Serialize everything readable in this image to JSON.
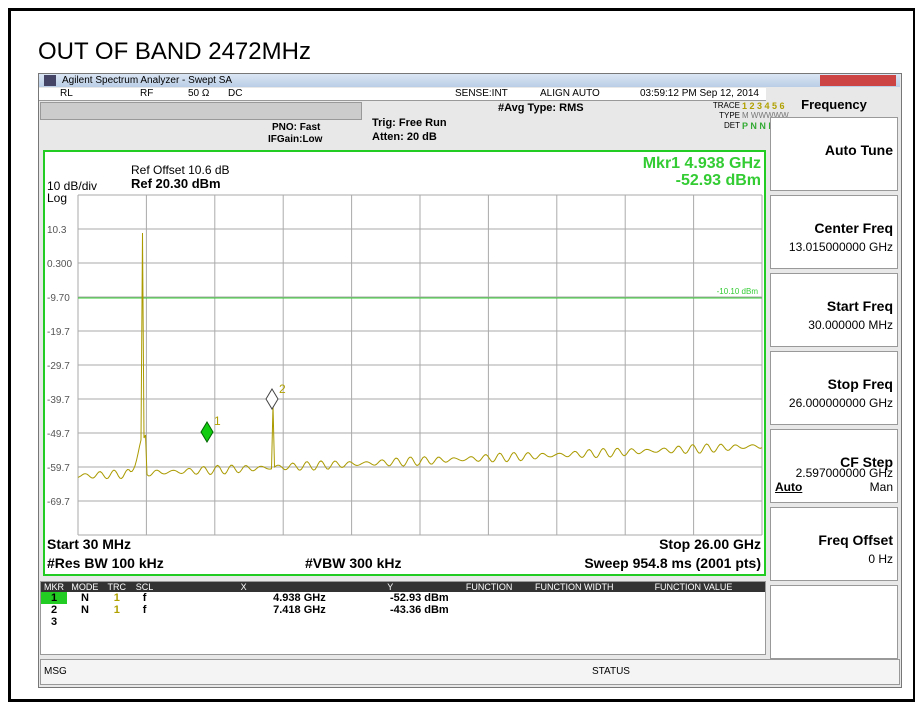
{
  "page_title": "OUT OF BAND 2472MHz",
  "window_title": "Agilent Spectrum Analyzer - Swept SA",
  "status_bar": {
    "rl": "RL",
    "rf": "RF",
    "impedance": "50 Ω",
    "coupling": "DC",
    "sense": "SENSE:INT",
    "align": "ALIGN AUTO",
    "datetime": "03:59:12 PM Sep 12, 2014"
  },
  "settings": {
    "avg_type": "#Avg Type: RMS",
    "pno": "PNO: Fast",
    "ifgain": "IFGain:Low",
    "trig": "Trig: Free Run",
    "atten": "Atten: 20 dB",
    "trace_label": "TRACE",
    "trace_nums": "1 2 3 4 5 6",
    "type_label": "TYPE",
    "type_val": "M WWWWW",
    "det_label": "DET",
    "det_val": "P N N N N N"
  },
  "plot": {
    "ref_offset": "Ref Offset 10.6 dB",
    "ref": "Ref 20.30 dBm",
    "scale": "10 dB/div",
    "log": "Log",
    "marker_readout_1": "Mkr1 4.938 GHz",
    "marker_readout_2": "-52.93 dBm",
    "yticks": [
      "10.3",
      "0.300",
      "-9.70",
      "-19.7",
      "-29.7",
      "-39.7",
      "-49.7",
      "-59.7",
      "-69.7"
    ],
    "limit_label": "-10.10 dBm",
    "marker_labels": [
      "1",
      "2"
    ],
    "start": "Start 30 MHz",
    "stop": "Stop 26.00 GHz",
    "rbw": "#Res BW 100 kHz",
    "vbw": "#VBW 300 kHz",
    "sweep": "Sweep  954.8 ms (2001 pts)"
  },
  "menu": {
    "title": "Frequency",
    "buttons": [
      {
        "label": "Auto Tune"
      },
      {
        "label": "Center Freq",
        "value": "13.015000000 GHz"
      },
      {
        "label": "Start Freq",
        "value": "30.000000 MHz"
      },
      {
        "label": "Stop Freq",
        "value": "26.000000000 GHz"
      },
      {
        "label": "CF Step",
        "value": "2.597000000 GHz",
        "options": [
          "Auto",
          "Man"
        ]
      },
      {
        "label": "Freq Offset",
        "value": "0 Hz"
      }
    ]
  },
  "marker_table": {
    "headers": [
      "MKR",
      "MODE",
      "TRC",
      "SCL",
      "X",
      "Y",
      "FUNCTION",
      "FUNCTION WIDTH",
      "FUNCTION VALUE"
    ],
    "rows": [
      [
        "1",
        "N",
        "1",
        "f",
        "4.938 GHz",
        "-52.93 dBm"
      ],
      [
        "2",
        "N",
        "1",
        "f",
        "7.418 GHz",
        "-43.36 dBm"
      ],
      [
        "3"
      ]
    ]
  },
  "footer": {
    "msg": "MSG",
    "status": "STATUS"
  }
}
